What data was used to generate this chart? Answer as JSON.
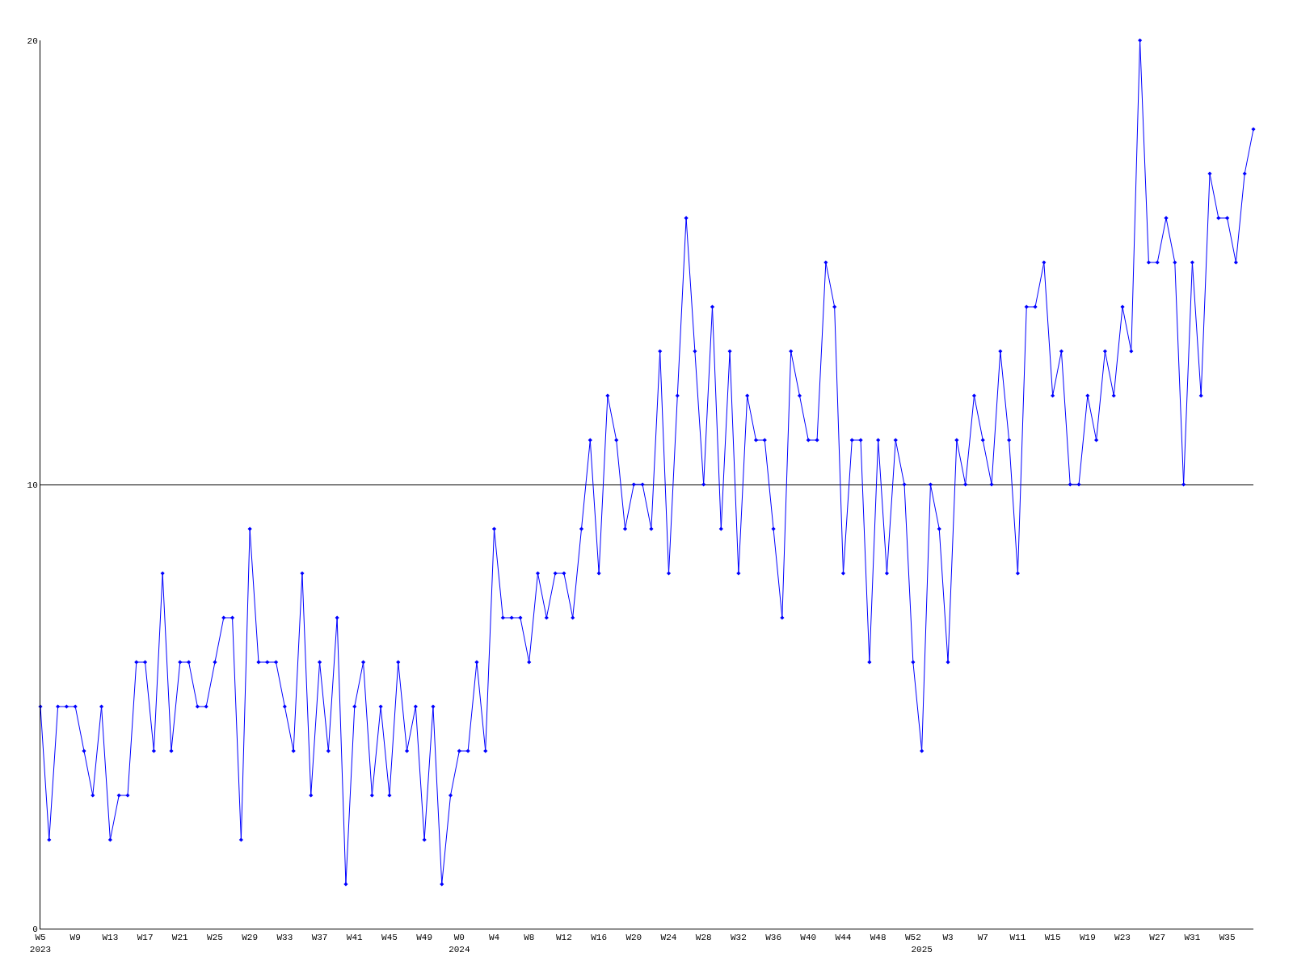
{
  "chart_data": {
    "type": "line",
    "categories": [
      "W5\n2023",
      null,
      null,
      null,
      "W9",
      null,
      null,
      null,
      "W13",
      null,
      null,
      null,
      "W17",
      null,
      null,
      null,
      "W21",
      null,
      null,
      null,
      "W25",
      null,
      null,
      null,
      "W29",
      null,
      null,
      null,
      "W33",
      null,
      null,
      null,
      "W37",
      null,
      null,
      null,
      "W41",
      null,
      null,
      null,
      "W45",
      null,
      null,
      null,
      "W49",
      null,
      null,
      null,
      "W0\n2024",
      null,
      null,
      null,
      "W4",
      null,
      null,
      null,
      "W8",
      null,
      null,
      null,
      "W12",
      null,
      null,
      null,
      "W16",
      null,
      null,
      null,
      "W20",
      null,
      null,
      null,
      "W24",
      null,
      null,
      null,
      "W28",
      null,
      null,
      null,
      "W32",
      null,
      null,
      null,
      "W36",
      null,
      null,
      null,
      "W40",
      null,
      null,
      null,
      "W44",
      null,
      null,
      null,
      "W48",
      null,
      null,
      null,
      "W52",
      "\n2025",
      null,
      null,
      "W3",
      null,
      null,
      null,
      "W7",
      null,
      null,
      null,
      "W11",
      null,
      null,
      null,
      "W15",
      null,
      null,
      null,
      "W19",
      null,
      null,
      null,
      "W23",
      null,
      null,
      null,
      "W27",
      null,
      null,
      null,
      "W31",
      null,
      null,
      null,
      "W35",
      null,
      null,
      null
    ],
    "series": [
      {
        "color": "#0000ff",
        "values": [
          5,
          2,
          5,
          5,
          5,
          4,
          3,
          5,
          2,
          3,
          3,
          6,
          6,
          4,
          8,
          4,
          6,
          6,
          5,
          5,
          6,
          7,
          7,
          2,
          9,
          6,
          6,
          6,
          5,
          4,
          8,
          3,
          6,
          4,
          7,
          1,
          5,
          6,
          3,
          5,
          3,
          6,
          4,
          5,
          2,
          5,
          1,
          3,
          4,
          4,
          6,
          4,
          9,
          7,
          7,
          7,
          6,
          8,
          7,
          8,
          8,
          7,
          9,
          11,
          8,
          12,
          11,
          9,
          10,
          10,
          9,
          13,
          8,
          12,
          16,
          13,
          10,
          14,
          9,
          13,
          8,
          12,
          11,
          11,
          9,
          7,
          13,
          12,
          11,
          11,
          15,
          14,
          8,
          11,
          11,
          6,
          11,
          8,
          11,
          10,
          6,
          4,
          10,
          9,
          6,
          11,
          10,
          12,
          11,
          10,
          13,
          11,
          8,
          14,
          14,
          15,
          12,
          13,
          10,
          10,
          12,
          11,
          13,
          12,
          14,
          13,
          20,
          15,
          15,
          16,
          15,
          10,
          15,
          12,
          17,
          16,
          16,
          15,
          17,
          18
        ]
      }
    ],
    "ylim": [
      0,
      20
    ],
    "yticks": [
      0,
      10,
      20
    ],
    "grid": "y",
    "marker": "diamond",
    "line_style": "solid"
  }
}
